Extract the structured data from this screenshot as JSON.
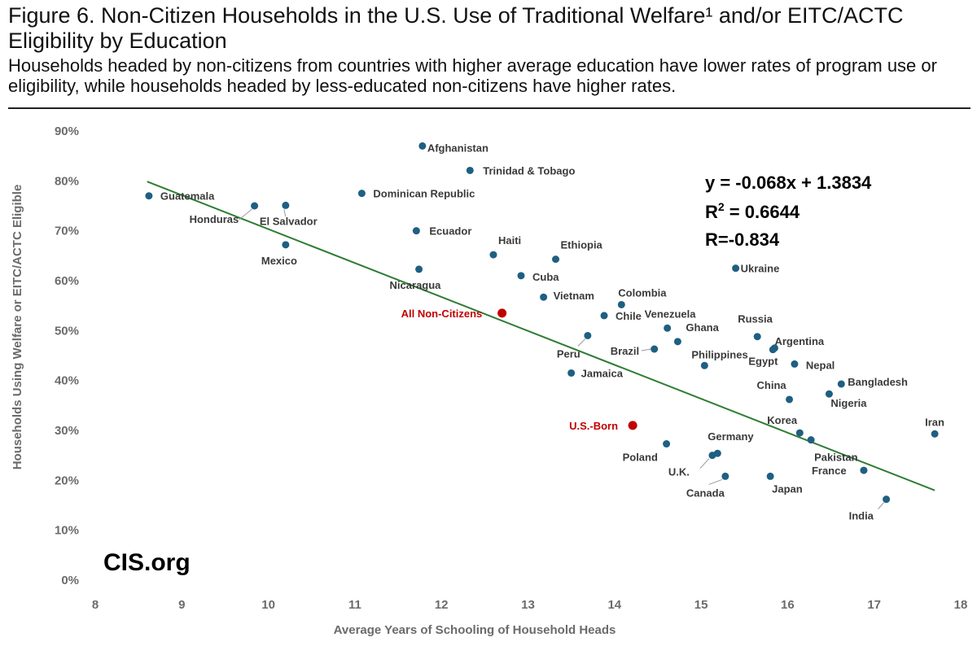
{
  "header": {
    "title": "Figure 6. Non-Citizen Households in the U.S. Use of Traditional Welfare¹ and/or EITC/ACTC Eligibility by Education",
    "subtitle": "Households headed by non-citizens from countries with higher average education have lower rates of program use or eligibility, while households headed by less-educated non-citizens have higher rates."
  },
  "brand": "CIS.org",
  "chart_data": {
    "type": "scatter",
    "title": "Figure 6. Non-Citizen Households in the U.S. Use of Traditional Welfare¹ and/or EITC/ACTC Eligibility by Education",
    "xlabel": "Average Years of Schooling of Household Heads",
    "ylabel": "Households Using Welfare or EITC/ACTC Eligible",
    "xlim": [
      8,
      18
    ],
    "ylim": [
      0,
      0.9
    ],
    "x_ticks": [
      "8",
      "9",
      "10",
      "11",
      "12",
      "13",
      "14",
      "15",
      "16",
      "17",
      "18"
    ],
    "y_ticks": [
      "0%",
      "10%",
      "20%",
      "30%",
      "40%",
      "50%",
      "60%",
      "70%",
      "80%",
      "90%"
    ],
    "grid": false,
    "trendline": {
      "slope": -0.068,
      "intercept": 1.3834,
      "x_range": [
        8.6,
        17.7
      ],
      "equation": "y = -0.068x + 1.3834",
      "r2_prefix": "R",
      "r2_sup": "2",
      "r2_value": " = 0.6644",
      "r": "R=-0.834",
      "color": "#2e7d32"
    },
    "colors": {
      "country": "#1f5f82",
      "highlight": "#c00000"
    },
    "points": [
      {
        "name": "Guatemala",
        "x": 8.62,
        "y": 0.77
      },
      {
        "name": "Honduras",
        "x": 9.84,
        "y": 0.75
      },
      {
        "name": "El Salvador",
        "x": 10.2,
        "y": 0.751
      },
      {
        "name": "Mexico",
        "x": 10.2,
        "y": 0.672
      },
      {
        "name": "Dominican Republic",
        "x": 11.08,
        "y": 0.775
      },
      {
        "name": "Afghanistan",
        "x": 11.78,
        "y": 0.87
      },
      {
        "name": "Trinidad & Tobago",
        "x": 12.33,
        "y": 0.821
      },
      {
        "name": "Ecuador",
        "x": 11.71,
        "y": 0.7
      },
      {
        "name": "Nicaragua",
        "x": 11.74,
        "y": 0.623
      },
      {
        "name": "Haiti",
        "x": 12.6,
        "y": 0.652
      },
      {
        "name": "Cuba",
        "x": 12.92,
        "y": 0.61
      },
      {
        "name": "Ethiopia",
        "x": 13.32,
        "y": 0.643
      },
      {
        "name": "Vietnam",
        "x": 13.18,
        "y": 0.567
      },
      {
        "name": "Colombia",
        "x": 14.08,
        "y": 0.552
      },
      {
        "name": "Chile",
        "x": 13.88,
        "y": 0.53
      },
      {
        "name": "Peru",
        "x": 13.69,
        "y": 0.49
      },
      {
        "name": "Jamaica",
        "x": 13.5,
        "y": 0.415
      },
      {
        "name": "Venezuela",
        "x": 14.61,
        "y": 0.505
      },
      {
        "name": "Ghana",
        "x": 14.73,
        "y": 0.478
      },
      {
        "name": "Brazil",
        "x": 14.46,
        "y": 0.463
      },
      {
        "name": "Philippines",
        "x": 15.04,
        "y": 0.43
      },
      {
        "name": "Ukraine",
        "x": 15.4,
        "y": 0.625
      },
      {
        "name": "Russia",
        "x": 15.65,
        "y": 0.488
      },
      {
        "name": "Argentina",
        "x": 15.85,
        "y": 0.465
      },
      {
        "name": "Egypt",
        "x": 15.83,
        "y": 0.462
      },
      {
        "name": "Nepal",
        "x": 16.08,
        "y": 0.433
      },
      {
        "name": "Bangladesh",
        "x": 16.62,
        "y": 0.393
      },
      {
        "name": "Nigeria",
        "x": 16.48,
        "y": 0.373
      },
      {
        "name": "China",
        "x": 16.02,
        "y": 0.362
      },
      {
        "name": "Korea",
        "x": 16.14,
        "y": 0.295
      },
      {
        "name": "Pakistan",
        "x": 16.27,
        "y": 0.281
      },
      {
        "name": "Iran",
        "x": 17.7,
        "y": 0.293
      },
      {
        "name": "Poland",
        "x": 14.6,
        "y": 0.273
      },
      {
        "name": "Germany",
        "x": 15.19,
        "y": 0.254
      },
      {
        "name": "U.K.",
        "x": 15.13,
        "y": 0.25
      },
      {
        "name": "Canada",
        "x": 15.28,
        "y": 0.208
      },
      {
        "name": "Japan",
        "x": 15.8,
        "y": 0.208
      },
      {
        "name": "France",
        "x": 16.88,
        "y": 0.22
      },
      {
        "name": "India",
        "x": 17.14,
        "y": 0.162
      },
      {
        "name": "All Non-Citizens",
        "x": 12.7,
        "y": 0.535,
        "highlight": true
      },
      {
        "name": "U.S.-Born",
        "x": 14.21,
        "y": 0.31,
        "highlight": true
      }
    ]
  }
}
